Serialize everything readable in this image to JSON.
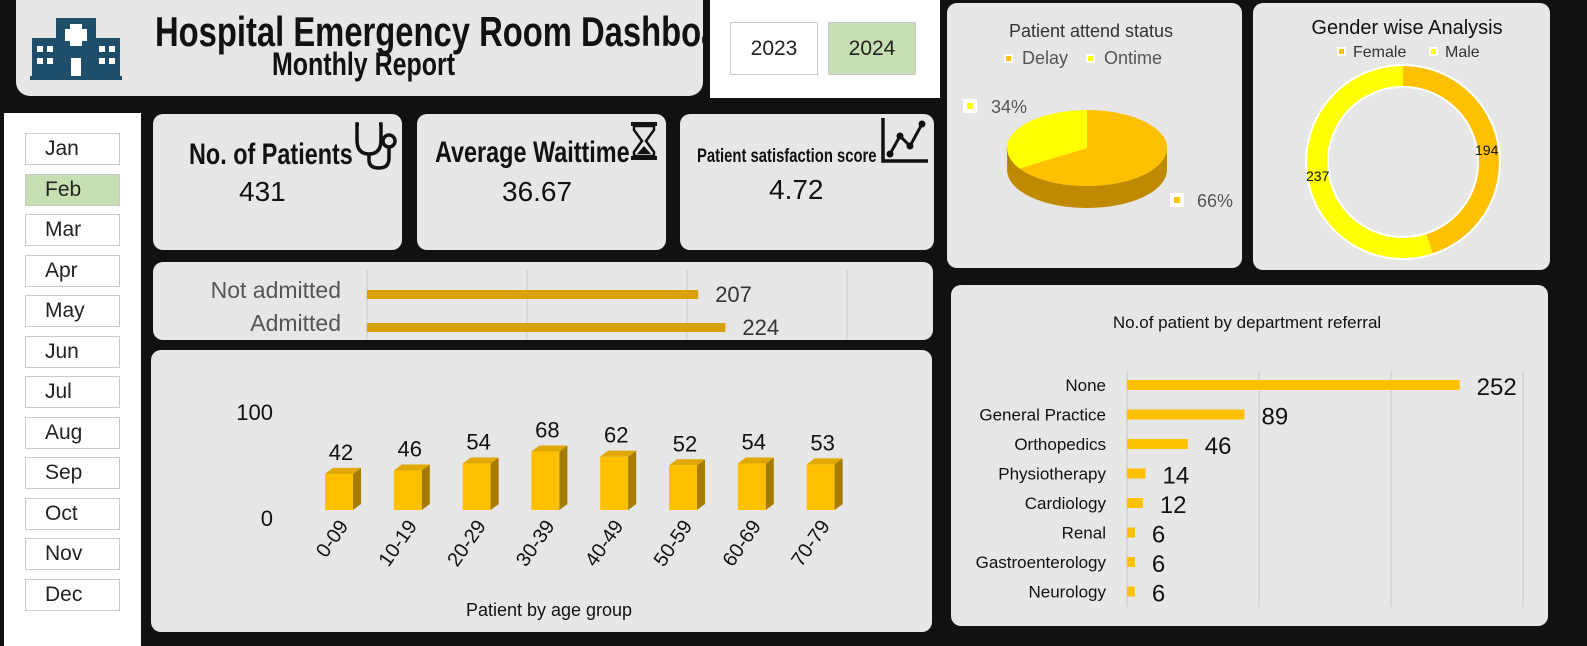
{
  "header": {
    "title": "Hospital Emergency Room Dashboard",
    "subtitle": "Monthly Report",
    "hospital_icon": "hospital-building-icon"
  },
  "years": [
    {
      "label": "2023",
      "selected": false
    },
    {
      "label": "2024",
      "selected": true
    }
  ],
  "months": [
    {
      "label": "Jan",
      "selected": false
    },
    {
      "label": "Feb",
      "selected": true
    },
    {
      "label": "Mar",
      "selected": false
    },
    {
      "label": "Apr",
      "selected": false
    },
    {
      "label": "May",
      "selected": false
    },
    {
      "label": "Jun",
      "selected": false
    },
    {
      "label": "Jul",
      "selected": false
    },
    {
      "label": "Aug",
      "selected": false
    },
    {
      "label": "Sep",
      "selected": false
    },
    {
      "label": "Oct",
      "selected": false
    },
    {
      "label": "Nov",
      "selected": false
    },
    {
      "label": "Dec",
      "selected": false
    }
  ],
  "kpis": {
    "patients": {
      "label": "No. of Patients",
      "value": "431",
      "icon": "stethoscope-icon"
    },
    "waittime": {
      "label": "Average Waittime",
      "value": "36.67",
      "icon": "hourglass-icon"
    },
    "satisfaction": {
      "label": "Patient satisfaction score",
      "value": "4.72",
      "icon": "line-chart-icon"
    }
  },
  "colors": {
    "accent": "#ffc000",
    "accent_dark": "#d8a000",
    "bar_dark": "#e5a800",
    "yellow": "#ffff00",
    "selected_green": "#c6e0b4",
    "panel": "#e7e7e7",
    "background": "#111111"
  },
  "chart_data": [
    {
      "type": "bar",
      "orientation": "horizontal",
      "categories": [
        "Not admitted",
        "Admitted"
      ],
      "values": [
        207,
        224
      ],
      "xlim": [
        0,
        300
      ]
    },
    {
      "type": "bar",
      "title": "Patient by age group",
      "categories": [
        "0-09",
        "10-19",
        "20-29",
        "30-39",
        "40-49",
        "50-59",
        "60-69",
        "70-79"
      ],
      "values": [
        42,
        46,
        54,
        68,
        62,
        52,
        54,
        53
      ],
      "yticks": [
        "0",
        "100"
      ],
      "ylim": [
        0,
        100
      ]
    },
    {
      "type": "pie",
      "title": "Patient attend status",
      "labels": [
        "Delay",
        "Ontime"
      ],
      "values": [
        66,
        34
      ],
      "data_labels": [
        "66%",
        "34%"
      ],
      "legend": "top"
    },
    {
      "type": "pie",
      "title": "Gender wise Analysis",
      "labels": [
        "Female",
        "Male"
      ],
      "values": [
        194,
        237
      ],
      "data_labels": [
        "194",
        "237"
      ],
      "legend": "top"
    },
    {
      "type": "bar",
      "orientation": "horizontal",
      "title": "No.of patient by department referral",
      "categories": [
        "None",
        "General Practice",
        "Orthopedics",
        "Physiotherapy",
        "Cardiology",
        "Renal",
        "Gastroenterology",
        "Neurology"
      ],
      "values": [
        252,
        89,
        46,
        14,
        12,
        6,
        6,
        6
      ],
      "xlim": [
        0,
        300
      ]
    }
  ]
}
